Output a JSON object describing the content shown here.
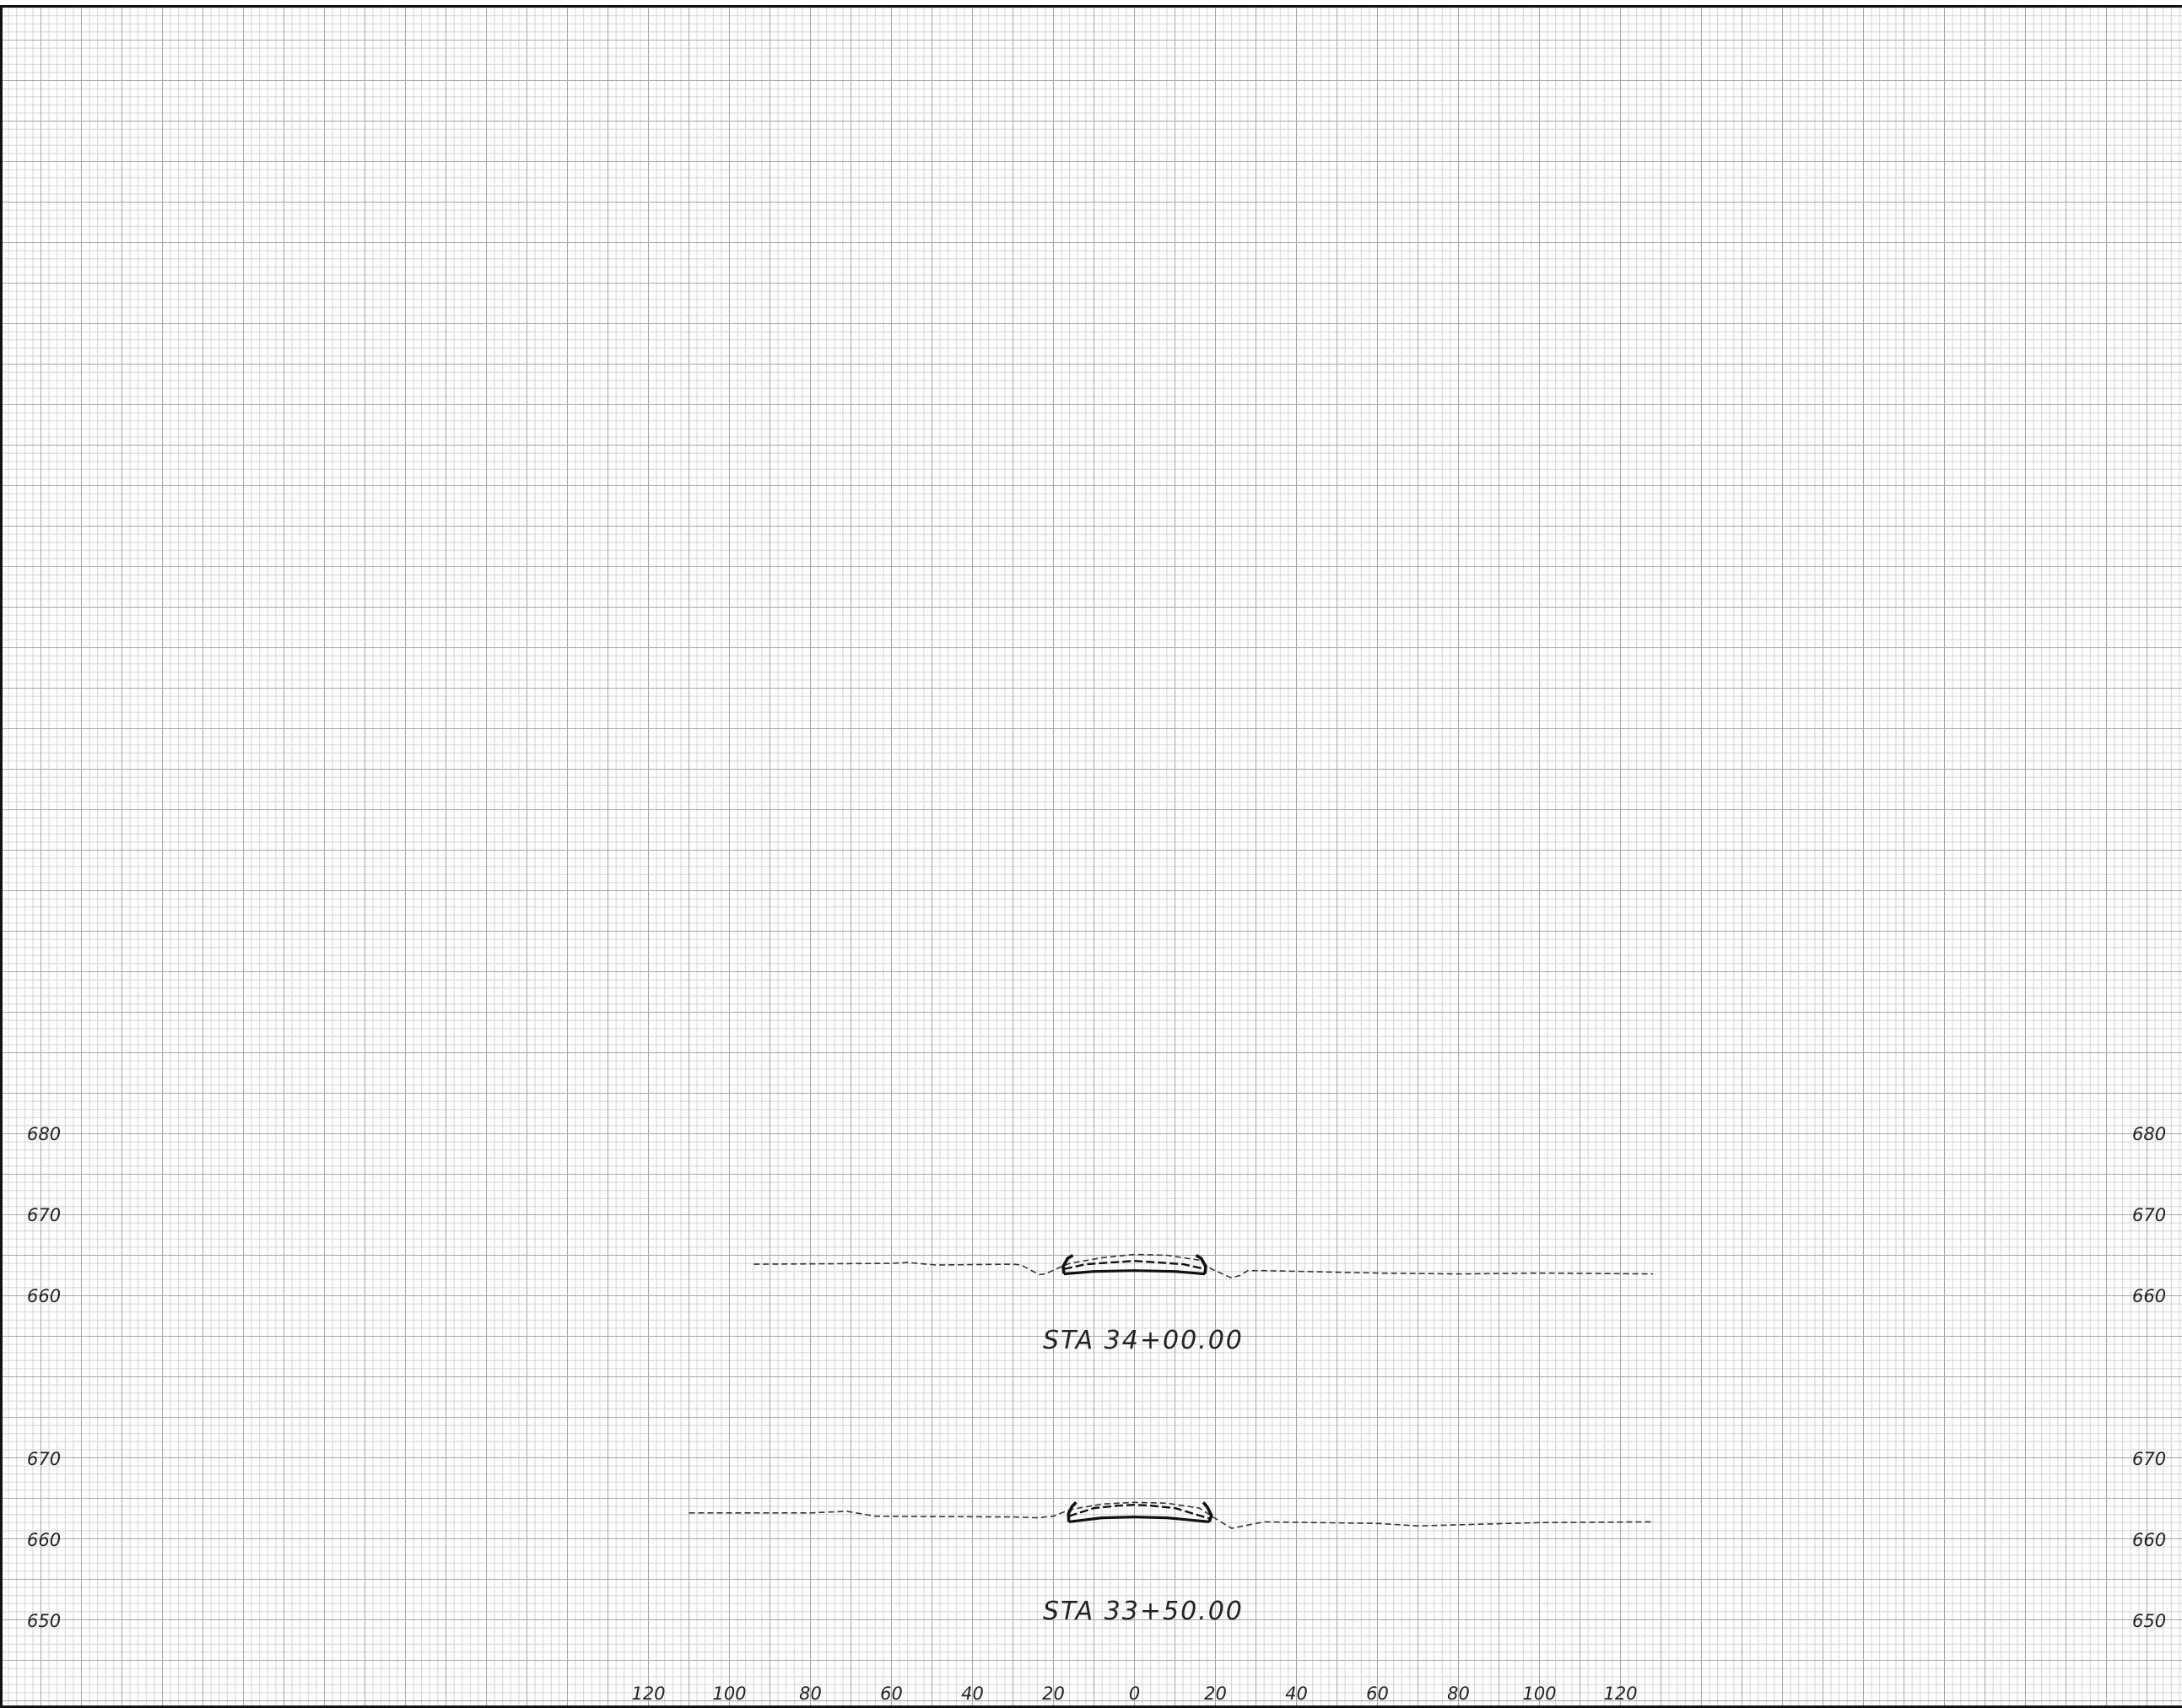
{
  "colors": {
    "grid_minor": "#d4d4d4",
    "grid_major": "#a6a6a6",
    "ink": "#111111",
    "ground": "#333333"
  },
  "offset_axis": {
    "labels": [
      "120",
      "100",
      "80",
      "60",
      "40",
      "20",
      "0",
      "20",
      "40",
      "60",
      "80",
      "100",
      "120"
    ],
    "values": [
      -120,
      -100,
      -80,
      -60,
      -40,
      -20,
      0,
      20,
      40,
      60,
      80,
      100,
      120
    ]
  },
  "sections": [
    {
      "station_label": "STA 34+00.00",
      "elevation_labels": [
        "680",
        "670",
        "660"
      ],
      "elevation_values": [
        680,
        670,
        660
      ],
      "existing_ground": [
        [
          -94,
          663.9
        ],
        [
          -60,
          664.0
        ],
        [
          -56,
          664.1
        ],
        [
          -49,
          663.8
        ],
        [
          -30,
          663.9
        ],
        [
          -28,
          663.8
        ],
        [
          -23.5,
          662.6
        ],
        [
          -22,
          662.7
        ],
        [
          -18,
          663.6
        ],
        [
          -16,
          664.0
        ],
        [
          -8,
          664.7
        ],
        [
          0,
          665.1
        ],
        [
          8,
          665.0
        ],
        [
          16,
          664.4
        ],
        [
          19,
          663.3
        ],
        [
          24,
          662.2
        ],
        [
          26,
          662.5
        ],
        [
          28,
          663.1
        ],
        [
          32,
          663.1
        ],
        [
          60,
          662.8
        ],
        [
          80,
          662.7
        ],
        [
          100,
          662.8
        ],
        [
          128,
          662.7
        ]
      ],
      "proposed_top": [
        [
          -17.4,
          663.3
        ],
        [
          -12,
          663.9
        ],
        [
          -6,
          664.1
        ],
        [
          0,
          664.3
        ],
        [
          6,
          664.1
        ],
        [
          12,
          663.9
        ],
        [
          17.4,
          663.3
        ]
      ],
      "proposed_bottom": [
        [
          -17.4,
          662.7
        ],
        [
          -10,
          663.0
        ],
        [
          0,
          663.1
        ],
        [
          10,
          663.0
        ],
        [
          17.4,
          662.7
        ]
      ],
      "left_curb": [
        [
          -17.4,
          662.7
        ],
        [
          -17.6,
          663.6
        ],
        [
          -16.5,
          664.6
        ],
        [
          -15.2,
          665.0
        ]
      ],
      "right_curb": [
        [
          17.4,
          662.7
        ],
        [
          17.6,
          663.6
        ],
        [
          16.5,
          664.6
        ],
        [
          15.2,
          665.0
        ]
      ]
    },
    {
      "station_label": "STA 33+50.00",
      "elevation_labels": [
        "670",
        "660",
        "650"
      ],
      "elevation_values": [
        670,
        660,
        650
      ],
      "existing_ground": [
        [
          -110,
          663.3
        ],
        [
          -80,
          663.3
        ],
        [
          -71,
          663.5
        ],
        [
          -64,
          662.9
        ],
        [
          -30,
          662.8
        ],
        [
          -24,
          662.7
        ],
        [
          -20,
          662.9
        ],
        [
          -16,
          663.7
        ],
        [
          -8,
          664.4
        ],
        [
          0,
          664.6
        ],
        [
          8,
          664.5
        ],
        [
          16,
          663.9
        ],
        [
          20,
          662.6
        ],
        [
          24,
          661.4
        ],
        [
          26,
          661.6
        ],
        [
          32,
          662.2
        ],
        [
          60,
          662.0
        ],
        [
          70,
          661.7
        ],
        [
          100,
          662.1
        ],
        [
          128,
          662.2
        ]
      ],
      "proposed_top": [
        [
          -16.2,
          662.9
        ],
        [
          -10,
          663.9
        ],
        [
          -4,
          664.2
        ],
        [
          0,
          664.3
        ],
        [
          4,
          664.2
        ],
        [
          10,
          663.9
        ],
        [
          18.5,
          662.6
        ]
      ],
      "proposed_bottom": [
        [
          -16.2,
          662.2
        ],
        [
          -8,
          662.7
        ],
        [
          0,
          662.8
        ],
        [
          8,
          662.7
        ],
        [
          18.5,
          662.2
        ]
      ],
      "left_curb": [
        [
          -16.2,
          662.2
        ],
        [
          -16.3,
          663.2
        ],
        [
          -15.4,
          664.1
        ],
        [
          -14.4,
          664.6
        ]
      ],
      "right_curb": [
        [
          18.5,
          662.2
        ],
        [
          19.0,
          663.0
        ],
        [
          18.0,
          664.0
        ],
        [
          17.0,
          664.6
        ]
      ]
    }
  ]
}
